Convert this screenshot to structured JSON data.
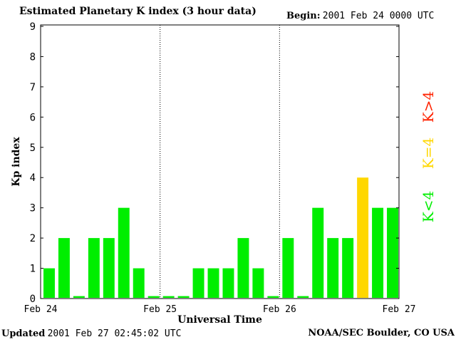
{
  "header": {
    "title": "Estimated Planetary K index (3 hour data)",
    "begin_label": "Begin:",
    "begin_value": "2001 Feb 24 0000 UTC"
  },
  "footer": {
    "updated_label": "Updated",
    "updated_value": "2001 Feb 27 02:45:02 UTC",
    "org": "NOAA/SEC Boulder, CO USA"
  },
  "chart_data": {
    "type": "bar",
    "title": "Estimated Planetary K index (3 hour data)",
    "xlabel": "Universal Time",
    "ylabel": "Kp index",
    "ylim": [
      0,
      9
    ],
    "yticks": [
      "0",
      "1",
      "2",
      "3",
      "4",
      "5",
      "6",
      "7",
      "8",
      "9"
    ],
    "x_day_labels": [
      "Feb 24",
      "Feb 25",
      "Feb 26",
      "Feb 27"
    ],
    "grid": false,
    "day_separators": "dotted vertical lines at day boundaries",
    "bins_per_day": 8,
    "values": [
      1,
      2,
      0,
      2,
      2,
      3,
      1,
      0,
      0,
      0,
      1,
      1,
      1,
      2,
      1,
      0,
      2,
      0,
      3,
      2,
      2,
      4,
      3,
      3
    ],
    "colors": {
      "below4": "#00ee00",
      "equal4": "#ffd700",
      "above4": "#ff2200"
    },
    "legend": {
      "placement": "right",
      "items": [
        {
          "label": "K<4",
          "color": "#00ee00"
        },
        {
          "label": "K=4",
          "color": "#ffd700"
        },
        {
          "label": "K>4",
          "color": "#ff2200"
        }
      ]
    }
  }
}
